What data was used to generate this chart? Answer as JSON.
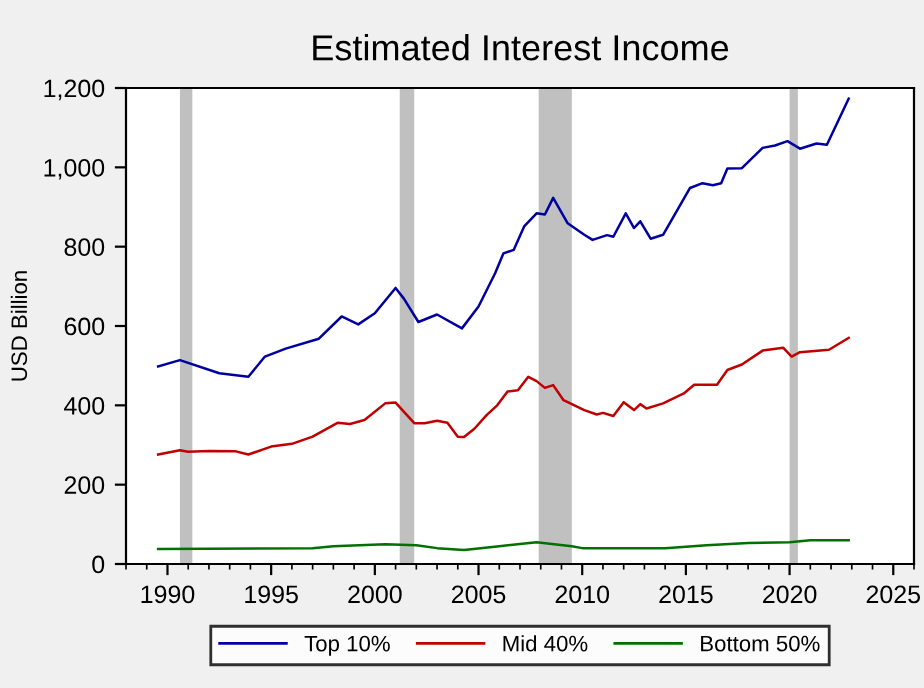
{
  "chart_data": {
    "type": "line",
    "title": "Estimated Interest Income",
    "ylabel": "USD Billion",
    "xlim": [
      1988,
      2026
    ],
    "xticks": [
      1990,
      1995,
      2000,
      2005,
      2010,
      2015,
      2020,
      2025
    ],
    "ylim": [
      0,
      1200
    ],
    "yticks": [
      {
        "value": 0,
        "label": "0"
      },
      {
        "value": 200,
        "label": "200"
      },
      {
        "value": 400,
        "label": "400"
      },
      {
        "value": 600,
        "label": "600"
      },
      {
        "value": 800,
        "label": "800"
      },
      {
        "value": 1000,
        "label": "1,000"
      },
      {
        "value": 1200,
        "label": "1,200"
      }
    ],
    "grid": false,
    "legend": "bottom",
    "marker": "none",
    "line_style": "solid",
    "bands": [
      {
        "axis": "x",
        "from": 1990.6,
        "to": 1991.2,
        "color": "#c0c0c0"
      },
      {
        "axis": "x",
        "from": 2001.2,
        "to": 2001.9,
        "color": "#c0c0c0"
      },
      {
        "axis": "x",
        "from": 2007.9,
        "to": 2009.5,
        "color": "#c0c0c0"
      },
      {
        "axis": "x",
        "from": 2020.0,
        "to": 2020.4,
        "color": "#c0c0c0"
      }
    ],
    "series": [
      {
        "name": "Top 10%",
        "color": "#0000a0",
        "x": [
          1989.55,
          1990.6,
          1992.5,
          1993.9,
          1994.7,
          1995.7,
          1997.3,
          1998.4,
          1999.2,
          2000.0,
          2001.0,
          2001.4,
          2002.1,
          2003.0,
          2004.2,
          2005.0,
          2005.8,
          2006.2,
          2006.7,
          2007.2,
          2007.8,
          2008.2,
          2008.6,
          2009.3,
          2010.1,
          2010.5,
          2011.2,
          2011.5,
          2012.1,
          2012.5,
          2012.8,
          2013.3,
          2013.9,
          2015.2,
          2015.8,
          2016.3,
          2016.7,
          2017.0,
          2017.7,
          2018.7,
          2019.3,
          2019.9,
          2020.5,
          2021.3,
          2021.8,
          2022.85
        ],
        "values": [
          498,
          514,
          481,
          472,
          523,
          543,
          568,
          624,
          604,
          632,
          696,
          669,
          610,
          629,
          594,
          649,
          733,
          783,
          792,
          851,
          884,
          881,
          923,
          859,
          830,
          817,
          829,
          825,
          884,
          847,
          864,
          820,
          830,
          948,
          960,
          955,
          960,
          997,
          998,
          1049,
          1055,
          1066,
          1047,
          1060,
          1057,
          1173
        ]
      },
      {
        "name": "Mid 40%",
        "color": "#c00000",
        "x": [
          1989.55,
          1990.6,
          1991.0,
          1992.0,
          1993.3,
          1993.9,
          1995.0,
          1996.0,
          1997.0,
          1998.2,
          1998.8,
          1999.5,
          2000.5,
          2001.0,
          2001.9,
          2002.4,
          2003.0,
          2003.5,
          2004.0,
          2004.3,
          2004.8,
          2005.4,
          2005.9,
          2006.4,
          2006.9,
          2007.4,
          2007.8,
          2008.2,
          2008.6,
          2009.1,
          2010.1,
          2010.7,
          2011.0,
          2011.5,
          2012.0,
          2012.5,
          2012.8,
          2013.1,
          2013.9,
          2014.9,
          2015.4,
          2016.5,
          2017.0,
          2017.7,
          2018.7,
          2019.7,
          2020.1,
          2020.5,
          2021.9,
          2022.85
        ],
        "values": [
          276,
          287,
          283,
          285,
          284,
          276,
          296,
          303,
          321,
          356,
          353,
          363,
          405,
          407,
          355,
          355,
          361,
          356,
          321,
          320,
          341,
          376,
          400,
          435,
          438,
          472,
          461,
          444,
          451,
          413,
          388,
          377,
          381,
          373,
          408,
          388,
          403,
          392,
          405,
          430,
          452,
          452,
          489,
          503,
          538,
          545,
          523,
          534,
          540,
          570
        ]
      },
      {
        "name": "Bottom 50%",
        "color": "#007000",
        "x": [
          1989.55,
          1997.0,
          1998.0,
          2000.5,
          2002.0,
          2003.0,
          2004.3,
          2006.0,
          2007.8,
          2009.5,
          2010.0,
          2014.0,
          2016.0,
          2018.0,
          2020.0,
          2021.0,
          2022.85
        ],
        "values": [
          38,
          40,
          45,
          50,
          47,
          40,
          35,
          45,
          55,
          45,
          40,
          40,
          47,
          53,
          55,
          60,
          60
        ]
      }
    ]
  }
}
